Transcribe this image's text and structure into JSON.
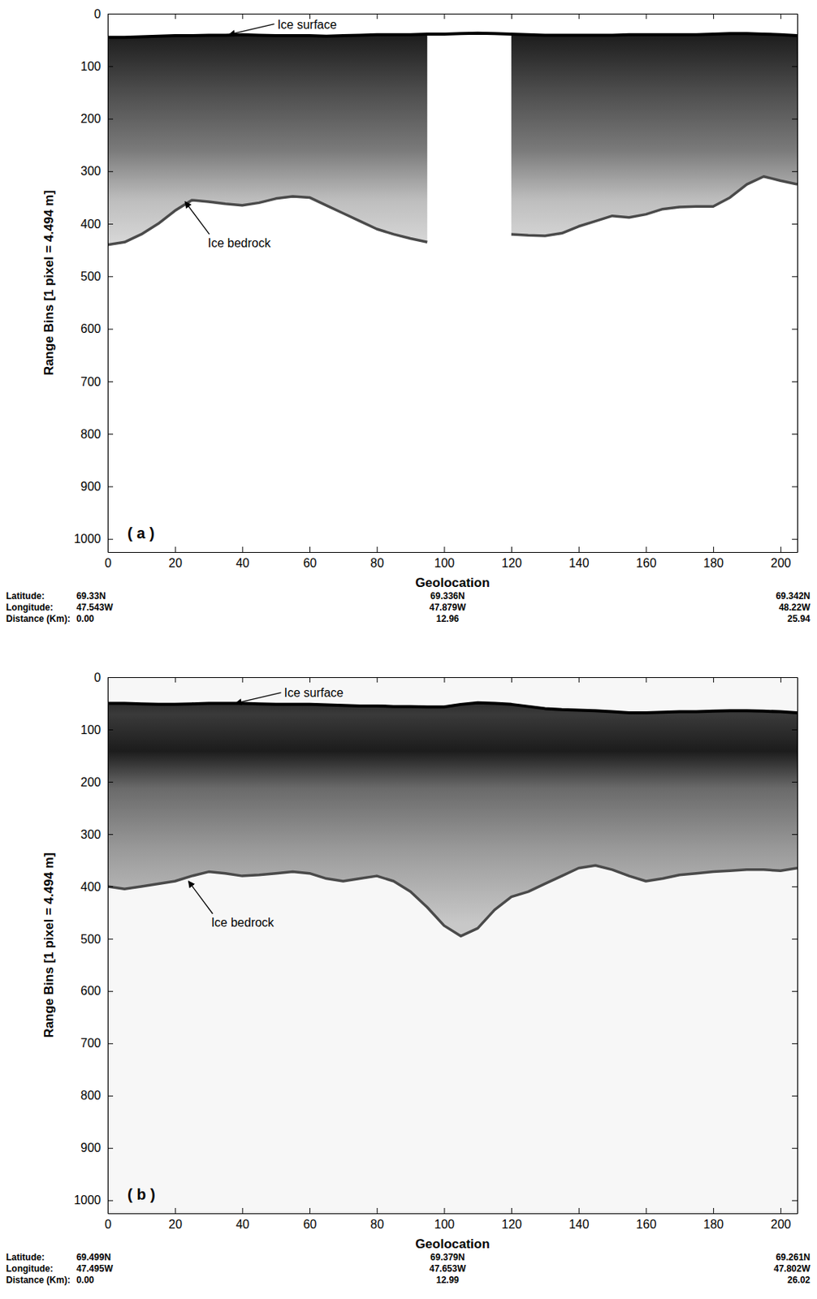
{
  "chart_data": [
    {
      "type": "line",
      "label": "( a )",
      "x_label": "Geolocation",
      "y_label": "Range Bins [1 pixel = 4.494 m]",
      "x": [
        0,
        5,
        10,
        15,
        20,
        25,
        30,
        35,
        40,
        45,
        50,
        55,
        60,
        65,
        70,
        75,
        80,
        85,
        90,
        95,
        100,
        105,
        110,
        115,
        120,
        125,
        130,
        135,
        140,
        145,
        150,
        155,
        160,
        165,
        170,
        175,
        180,
        185,
        190,
        195,
        200,
        205
      ],
      "series": [
        {
          "color": "#000000",
          "line_style": "solid",
          "values": [
            45,
            45,
            44,
            43,
            42,
            42,
            41,
            41,
            40,
            41,
            42,
            42,
            42,
            43,
            42,
            41,
            40,
            40,
            40,
            39,
            39,
            38,
            37,
            38,
            39,
            40,
            41,
            41,
            41,
            41,
            41,
            40,
            40,
            40,
            40,
            40,
            39,
            38,
            38,
            39,
            40,
            42
          ]
        },
        {
          "color": "#4a4a4a",
          "line_style": "solid",
          "values": [
            440,
            435,
            420,
            400,
            375,
            355,
            358,
            362,
            365,
            360,
            352,
            348,
            350,
            365,
            380,
            395,
            410,
            420,
            428,
            435,
            null,
            null,
            null,
            null,
            420,
            422,
            423,
            418,
            405,
            395,
            385,
            388,
            382,
            372,
            368,
            367,
            367,
            350,
            325,
            310,
            318,
            325
          ]
        }
      ],
      "xlim": [
        0,
        205
      ],
      "ylim": [
        0,
        1025
      ],
      "xticks": [
        0,
        20,
        40,
        60,
        80,
        100,
        120,
        140,
        160,
        180,
        200
      ],
      "yticks": [
        0,
        100,
        200,
        300,
        400,
        500,
        600,
        700,
        800,
        900,
        1000
      ],
      "annotations": [
        {
          "text": "Ice surface",
          "x": 36,
          "y": 40
        },
        {
          "text": "Ice bedrock",
          "x": 23,
          "y": 358
        }
      ],
      "footer": {
        "rows": [
          [
            "Latitude:",
            "69.33N",
            "69.336N",
            "69.342N"
          ],
          [
            "Longitude:",
            "47.543W",
            "47.879W",
            "48.22W"
          ],
          [
            "Distance (Km):",
            "0.00",
            "12.96",
            "25.94"
          ]
        ]
      }
    },
    {
      "type": "line",
      "label": "( b )",
      "x_label": "Geolocation",
      "y_label": "Range Bins [1 pixel = 4.494 m]",
      "x": [
        0,
        5,
        10,
        15,
        20,
        25,
        30,
        35,
        40,
        45,
        50,
        55,
        60,
        65,
        70,
        75,
        80,
        85,
        90,
        95,
        100,
        105,
        110,
        115,
        120,
        125,
        130,
        135,
        140,
        145,
        150,
        155,
        160,
        165,
        170,
        175,
        180,
        185,
        190,
        195,
        200,
        205
      ],
      "series": [
        {
          "color": "#000000",
          "line_style": "solid",
          "values": [
            50,
            50,
            51,
            52,
            52,
            51,
            50,
            50,
            50,
            51,
            52,
            52,
            52,
            53,
            54,
            55,
            55,
            56,
            56,
            57,
            57,
            52,
            49,
            50,
            52,
            56,
            60,
            62,
            63,
            64,
            66,
            68,
            68,
            67,
            66,
            66,
            65,
            64,
            64,
            65,
            66,
            68
          ]
        },
        {
          "color": "#4a4a4a",
          "line_style": "solid",
          "values": [
            400,
            405,
            400,
            395,
            390,
            380,
            372,
            375,
            380,
            378,
            375,
            372,
            375,
            385,
            390,
            385,
            380,
            390,
            410,
            440,
            475,
            495,
            480,
            445,
            420,
            410,
            395,
            380,
            365,
            360,
            368,
            380,
            390,
            385,
            378,
            375,
            372,
            370,
            368,
            368,
            370,
            365
          ]
        }
      ],
      "xlim": [
        0,
        205
      ],
      "ylim": [
        0,
        1025
      ],
      "xticks": [
        0,
        20,
        40,
        60,
        80,
        100,
        120,
        140,
        160,
        180,
        200
      ],
      "yticks": [
        0,
        100,
        200,
        300,
        400,
        500,
        600,
        700,
        800,
        900,
        1000
      ],
      "annotations": [
        {
          "text": "Ice surface",
          "x": 38,
          "y": 50
        },
        {
          "text": "Ice bedrock",
          "x": 24,
          "y": 390
        }
      ],
      "footer": {
        "rows": [
          [
            "Latitude:",
            "69.499N",
            "69.379N",
            "69.261N"
          ],
          [
            "Longitude:",
            "47.495W",
            "47.653W",
            "47.802W"
          ],
          [
            "Distance (Km):",
            "0.00",
            "12.99",
            "26.02"
          ]
        ]
      }
    }
  ]
}
